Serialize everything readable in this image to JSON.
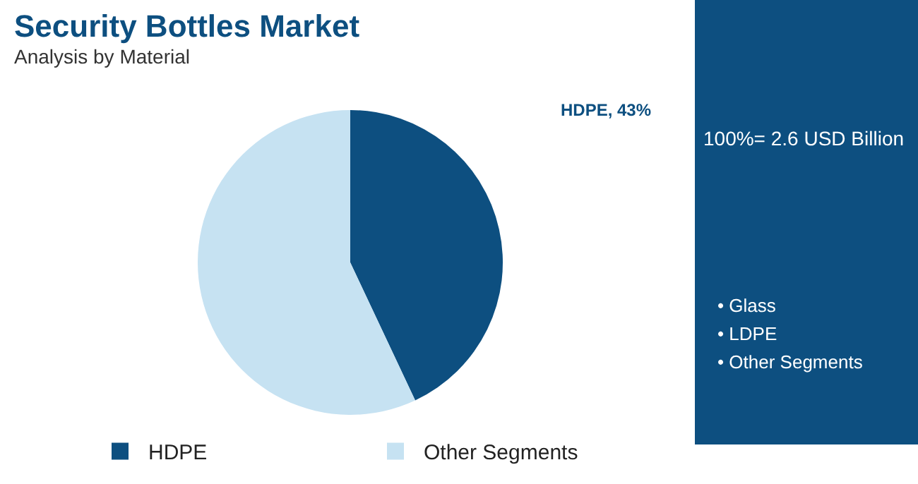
{
  "chart_data": {
    "type": "pie",
    "title": "Security Bottles Market",
    "subtitle": "Analysis by Material",
    "categories": [
      "HDPE",
      "Other Segments"
    ],
    "values": [
      43,
      57
    ],
    "colors": [
      "#0d4f80",
      "#c6e2f2"
    ],
    "value_labels": [
      "HDPE, 43%",
      null
    ],
    "legend": "bottom",
    "annotations": [
      "100%= 2.6 USD Billion",
      "• Glass",
      "• LDPE",
      "• Other Segments"
    ]
  }
}
